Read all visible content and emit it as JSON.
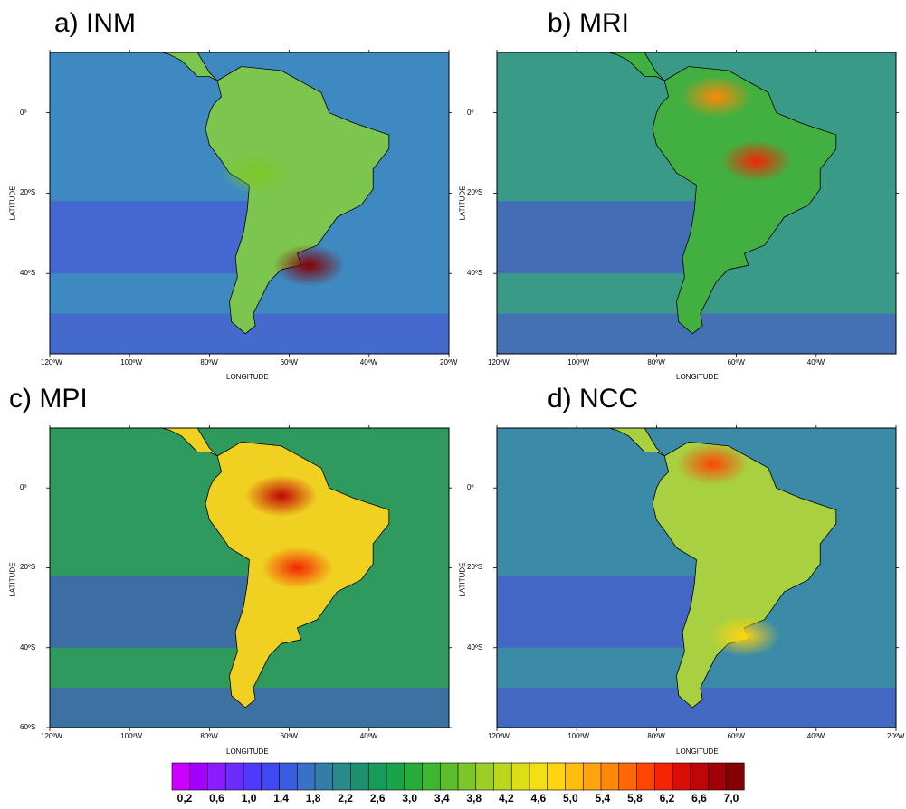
{
  "panels": [
    {
      "id": "a",
      "title": "a) INM",
      "xlabel": "LONGITUDE",
      "ylabel": "LATITUDE",
      "xticks": [
        "120ºW",
        "100ºW",
        "80ºW",
        "60ºW",
        "40ºW",
        "20ºW"
      ],
      "yticks": [
        "0º",
        "20ºS",
        "40ºS"
      ],
      "hotspots": [
        {
          "lon": -68,
          "lat": -15,
          "value": 3.8
        },
        {
          "lon": -55,
          "lat": -38,
          "value": 7.0
        }
      ]
    },
    {
      "id": "b",
      "title": "b) MRI",
      "xlabel": "LONGITUDE",
      "ylabel": "LATITUDE",
      "xticks": [
        "120ºW",
        "100ºW",
        "80ºW",
        "60ºW",
        "40ºW"
      ],
      "yticks": [
        "0º",
        "20ºS",
        "40ºS"
      ],
      "hotspots": [
        {
          "lon": -55,
          "lat": -12,
          "value": 6.2
        },
        {
          "lon": -65,
          "lat": 4,
          "value": 5.4
        }
      ]
    },
    {
      "id": "c",
      "title": "c) MPI",
      "xlabel": "LONGITUDE",
      "ylabel": "LATITUDE",
      "xticks": [
        "120ºW",
        "100ºW",
        "80ºW",
        "60ºW",
        "40ºW"
      ],
      "yticks": [
        "0º",
        "20ºS",
        "40ºS",
        "60ºS"
      ],
      "hotspots": [
        {
          "lon": -62,
          "lat": -2,
          "value": 6.6
        },
        {
          "lon": -58,
          "lat": -20,
          "value": 6.2
        }
      ]
    },
    {
      "id": "d",
      "title": "d) NCC",
      "xlabel": "LONGITUDE",
      "ylabel": "LATITUDE",
      "xticks": [
        "120ºW",
        "100ºW",
        "80ºW",
        "60ºW",
        "40ºW",
        "20ºW"
      ],
      "yticks": [
        "0º",
        "20ºS",
        "40ºS"
      ],
      "hotspots": [
        {
          "lon": -66,
          "lat": 6,
          "value": 6.0
        },
        {
          "lon": -58,
          "lat": -37,
          "value": 4.8
        }
      ]
    }
  ],
  "colorbar": {
    "labels": [
      "0,2",
      "0,6",
      "1,0",
      "1,4",
      "1,8",
      "2,2",
      "2,6",
      "3,0",
      "3,4",
      "3,8",
      "4,2",
      "4,6",
      "5,0",
      "5,4",
      "5,8",
      "6,2",
      "6,6",
      "7,0"
    ],
    "colors": [
      "#cc00ff",
      "#a400ff",
      "#8a1cff",
      "#6a2cff",
      "#5038ff",
      "#4048ef",
      "#3a5cdf",
      "#3970c8",
      "#327ea8",
      "#2a8a8a",
      "#1e9070",
      "#179a5a",
      "#1aa24a",
      "#26ac3a",
      "#3eb632",
      "#5cbe2c",
      "#7cc628",
      "#9cce24",
      "#bcd61e",
      "#dcde18",
      "#f2e014",
      "#ffd410",
      "#ffbe0c",
      "#ffa40a",
      "#ff8808",
      "#ff6806",
      "#ff4404",
      "#f42404",
      "#dc0c08",
      "#c00408",
      "#a00008",
      "#840004"
    ]
  }
}
